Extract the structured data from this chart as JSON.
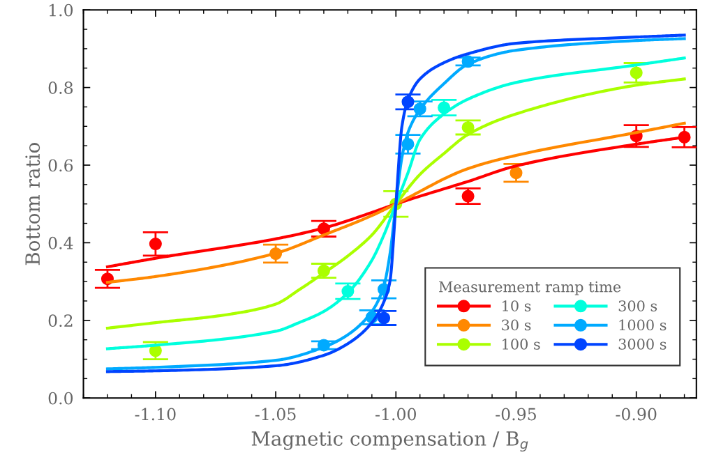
{
  "chart_data": {
    "type": "scatter",
    "xlabel": "Magnetic compensation / B$_{g}$",
    "ylabel": "Bottom ratio",
    "legend_title": "Measurement ramp time",
    "legend": "bottom right",
    "grid": false,
    "marker": "circle",
    "xlim": [
      -1.13,
      -0.875
    ],
    "ylim": [
      0,
      1
    ],
    "xticks": [
      {
        "value": -1.1,
        "label": "-1.10"
      },
      {
        "value": -1.05,
        "label": "-1.05"
      },
      {
        "value": -1.0,
        "label": "-1.00"
      },
      {
        "value": -0.95,
        "label": "-0.95"
      },
      {
        "value": -0.9,
        "label": "-0.90"
      }
    ],
    "yticks": [
      {
        "value": 0,
        "label": "0.0"
      },
      {
        "value": 0.2,
        "label": "0.2"
      },
      {
        "value": 0.4,
        "label": "0.4"
      },
      {
        "value": 0.6,
        "label": "0.6"
      },
      {
        "value": 0.8,
        "label": "0.8"
      },
      {
        "value": 1.0,
        "label": "1.0"
      }
    ],
    "series": [
      {
        "type": "line",
        "marker": "none",
        "color": "#ff0000",
        "x": [
          -1.12,
          -1.1,
          -1.05,
          -1.03,
          -1.01,
          -1.0,
          -0.97,
          -0.95,
          -0.9,
          -0.88
        ],
        "values": [
          0.338,
          0.36,
          0.41,
          0.438,
          0.478,
          0.5,
          0.558,
          0.598,
          0.654,
          0.672
        ]
      },
      {
        "type": "line",
        "marker": "none",
        "color": "#ff8800",
        "x": [
          -1.12,
          -1.1,
          -1.05,
          -1.03,
          -1.01,
          -1.0,
          -0.97,
          -0.95,
          -0.9,
          -0.88
        ],
        "values": [
          0.298,
          0.313,
          0.373,
          0.42,
          0.47,
          0.5,
          0.591,
          0.625,
          0.684,
          0.708
        ]
      },
      {
        "type": "line",
        "marker": "none",
        "color": "#aaff00",
        "x": [
          -1.12,
          -1.1,
          -1.07,
          -1.05,
          -1.04,
          -1.03,
          -1.02,
          -1.01,
          -1.0,
          -0.99,
          -0.98,
          -0.97,
          -0.95,
          -0.9,
          -0.88
        ],
        "values": [
          0.18,
          0.194,
          0.215,
          0.242,
          0.28,
          0.322,
          0.366,
          0.42,
          0.5,
          0.576,
          0.63,
          0.679,
          0.732,
          0.806,
          0.822
        ]
      },
      {
        "type": "line",
        "marker": "none",
        "color": "#00ffdd",
        "x": [
          -1.12,
          -1.1,
          -1.05,
          -1.04,
          -1.03,
          -1.02,
          -1.01,
          -1.005,
          -1.0,
          -0.995,
          -0.99,
          -0.98,
          -0.97,
          -0.95,
          -0.9,
          -0.88
        ],
        "values": [
          0.127,
          0.136,
          0.172,
          0.195,
          0.223,
          0.271,
          0.355,
          0.42,
          0.5,
          0.58,
          0.666,
          0.732,
          0.77,
          0.813,
          0.858,
          0.876
        ]
      },
      {
        "type": "line",
        "marker": "none",
        "color": "#00aaff",
        "x": [
          -1.12,
          -1.1,
          -1.05,
          -1.03,
          -1.02,
          -1.01,
          -1.005,
          -1.0025,
          -1.0,
          -0.9975,
          -0.995,
          -0.99,
          -0.98,
          -0.97,
          -0.95,
          -0.9,
          -0.88
        ],
        "values": [
          0.075,
          0.079,
          0.097,
          0.131,
          0.163,
          0.223,
          0.289,
          0.37,
          0.5,
          0.62,
          0.684,
          0.743,
          0.81,
          0.86,
          0.896,
          0.921,
          0.926
        ]
      },
      {
        "type": "line",
        "marker": "none",
        "color": "#0044ff",
        "x": [
          -1.12,
          -1.1,
          -1.05,
          -1.03,
          -1.02,
          -1.01,
          -1.005,
          -1.0025,
          -1.0,
          -0.9975,
          -0.995,
          -0.99,
          -0.98,
          -0.97,
          -0.95,
          -0.9,
          -0.88
        ],
        "values": [
          0.068,
          0.07,
          0.083,
          0.11,
          0.14,
          0.194,
          0.248,
          0.3,
          0.5,
          0.7,
          0.768,
          0.822,
          0.864,
          0.887,
          0.914,
          0.93,
          0.935
        ]
      },
      {
        "name": "10 s",
        "color": "#ff0000",
        "x": [
          -1.12,
          -1.1,
          -1.03,
          -0.97,
          -0.9,
          -0.88
        ],
        "values": [
          0.307,
          0.397,
          0.436,
          0.52,
          0.675,
          0.672
        ],
        "errors": [
          0.023,
          0.03,
          0.02,
          0.02,
          0.028,
          0.026
        ]
      },
      {
        "name": "30 s",
        "color": "#ff8800",
        "x": [
          -1.05,
          -0.95
        ],
        "values": [
          0.372,
          0.58
        ],
        "errors": [
          0.023,
          0.023
        ]
      },
      {
        "name": "100 s",
        "color": "#aaff00",
        "x": [
          -1.1,
          -1.03,
          -1.0,
          -0.97,
          -0.9
        ],
        "values": [
          0.122,
          0.328,
          0.5,
          0.697,
          0.838
        ],
        "errors": [
          0.022,
          0.018,
          0.033,
          0.018,
          0.025
        ]
      },
      {
        "name": "300 s",
        "color": "#00ffdd",
        "x": [
          -1.02,
          -0.98
        ],
        "values": [
          0.275,
          0.748
        ],
        "errors": [
          0.02,
          0.02
        ]
      },
      {
        "name": "1000 s",
        "color": "#00aaff",
        "x": [
          -1.03,
          -1.01,
          -1.005,
          -0.995,
          -0.99,
          -0.97
        ],
        "values": [
          0.136,
          0.208,
          0.28,
          0.654,
          0.745,
          0.867
        ],
        "errors": [
          0.01,
          0.018,
          0.023,
          0.024,
          0.019,
          0.01
        ]
      },
      {
        "name": "3000 s",
        "color": "#0044ff",
        "x": [
          -1.005,
          -0.995
        ],
        "values": [
          0.206,
          0.763
        ],
        "errors": [
          0.018,
          0.019
        ]
      }
    ]
  }
}
